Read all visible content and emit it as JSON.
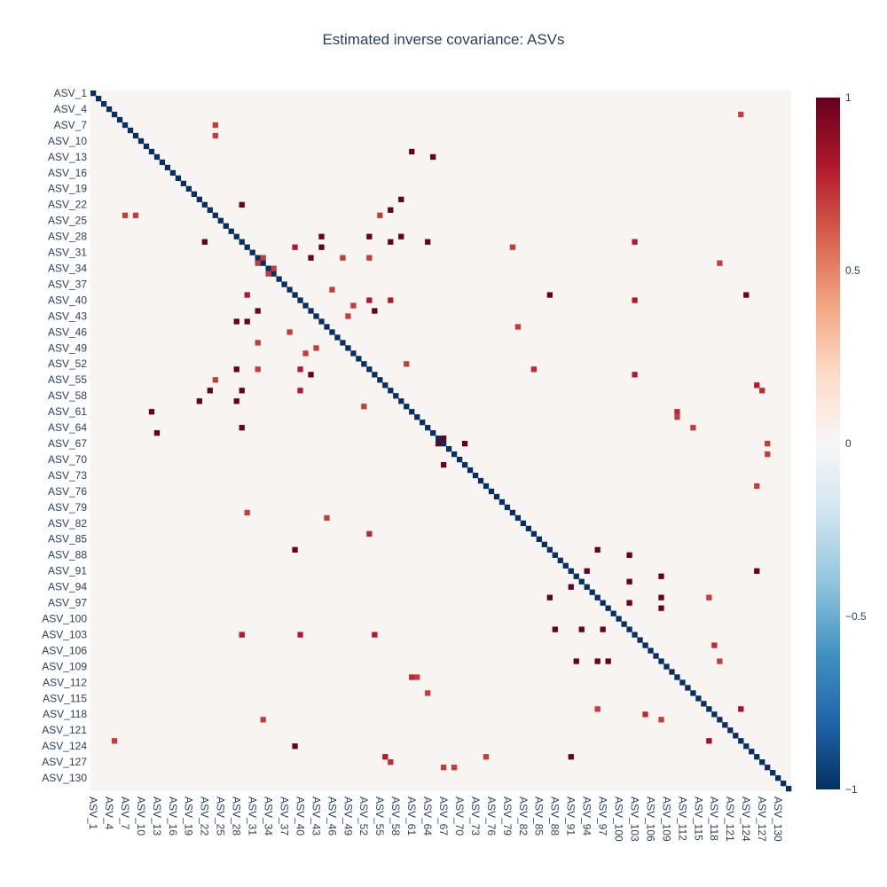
{
  "chart_data": {
    "type": "heatmap",
    "title": "Estimated inverse covariance: ASVs",
    "n": 132,
    "label_prefix": "ASV_",
    "tick_step": 3,
    "diagonal_value": -1,
    "offdiag_default": 0.02,
    "colorscale": "RdBu",
    "zrange": [
      -1,
      1
    ],
    "colorbar_ticks": [
      "1",
      "0.5",
      "0",
      "−0.5",
      "−1"
    ],
    "colorbar_tick_values": [
      1,
      0.5,
      0,
      -0.5,
      -1
    ],
    "colorscale_stops": [
      [
        0,
        "#053061"
      ],
      [
        0.1,
        "#2166ac"
      ],
      [
        0.2,
        "#4393c3"
      ],
      [
        0.3,
        "#92c5de"
      ],
      [
        0.4,
        "#d1e5f0"
      ],
      [
        0.5,
        "#f7f7f7"
      ],
      [
        0.6,
        "#fddbc7"
      ],
      [
        0.7,
        "#f4a582"
      ],
      [
        0.8,
        "#d6604d"
      ],
      [
        0.9,
        "#b2182b"
      ],
      [
        1,
        "#67001f"
      ]
    ],
    "nonzero_entries": [
      [
        12,
        64,
        1.0
      ],
      [
        20,
        58,
        1.0
      ],
      [
        21,
        28,
        1.0
      ],
      [
        27,
        43,
        1.0
      ],
      [
        27,
        52,
        1.0
      ],
      [
        27,
        58,
        1.0
      ],
      [
        28,
        63,
        1.0
      ],
      [
        31,
        41,
        1.0
      ],
      [
        38,
        86,
        1.0
      ],
      [
        43,
        29,
        1.0
      ],
      [
        41,
        53,
        1.0
      ],
      [
        56,
        22,
        1.0
      ],
      [
        56,
        28,
        1.0
      ],
      [
        60,
        11,
        1.0
      ],
      [
        65,
        66,
        1.0
      ],
      [
        66,
        70,
        1.0
      ],
      [
        86,
        95,
        1.0
      ],
      [
        87,
        101,
        1.0
      ],
      [
        90,
        93,
        1.0
      ],
      [
        92,
        101,
        1.0
      ],
      [
        96,
        101,
        1.0
      ],
      [
        97,
        107,
        1.0
      ],
      [
        107,
        91,
        1.0
      ],
      [
        107,
        95,
        1.0
      ],
      [
        123,
        38,
        1.0
      ],
      [
        125,
        90,
        1.0
      ],
      [
        116,
        122,
        0.85
      ],
      [
        55,
        125,
        0.8
      ],
      [
        102,
        28,
        0.8
      ],
      [
        102,
        39,
        0.8
      ],
      [
        102,
        53,
        0.8
      ],
      [
        52,
        83,
        0.75
      ],
      [
        52,
        39,
        0.8
      ],
      [
        60,
        110,
        0.75
      ],
      [
        4,
        122,
        0.7
      ],
      [
        31,
        47,
        0.7
      ],
      [
        31,
        52,
        0.7
      ],
      [
        33,
        34,
        0.7
      ],
      [
        32,
        31,
        0.7
      ],
      [
        40,
        49,
        0.7
      ],
      [
        38,
        29,
        0.8
      ],
      [
        39,
        56,
        0.8
      ],
      [
        23,
        8,
        0.7
      ],
      [
        6,
        23,
        0.7
      ],
      [
        45,
        37,
        0.7
      ],
      [
        54,
        23,
        0.7
      ],
      [
        56,
        126,
        0.75
      ],
      [
        61,
        110,
        0.7
      ],
      [
        63,
        113,
        0.7
      ],
      [
        68,
        127,
        0.7
      ],
      [
        48,
        42,
        0.7
      ],
      [
        44,
        80,
        0.7
      ],
      [
        95,
        116,
        0.7
      ],
      [
        59,
        51,
        0.7
      ],
      [
        104,
        117,
        0.75
      ],
      [
        118,
        32,
        0.7
      ],
      [
        125,
        74,
        0.7
      ],
      [
        127,
        66,
        0.7
      ],
      [
        107,
        118,
        0.7
      ],
      [
        29,
        79,
        0.7
      ]
    ]
  }
}
